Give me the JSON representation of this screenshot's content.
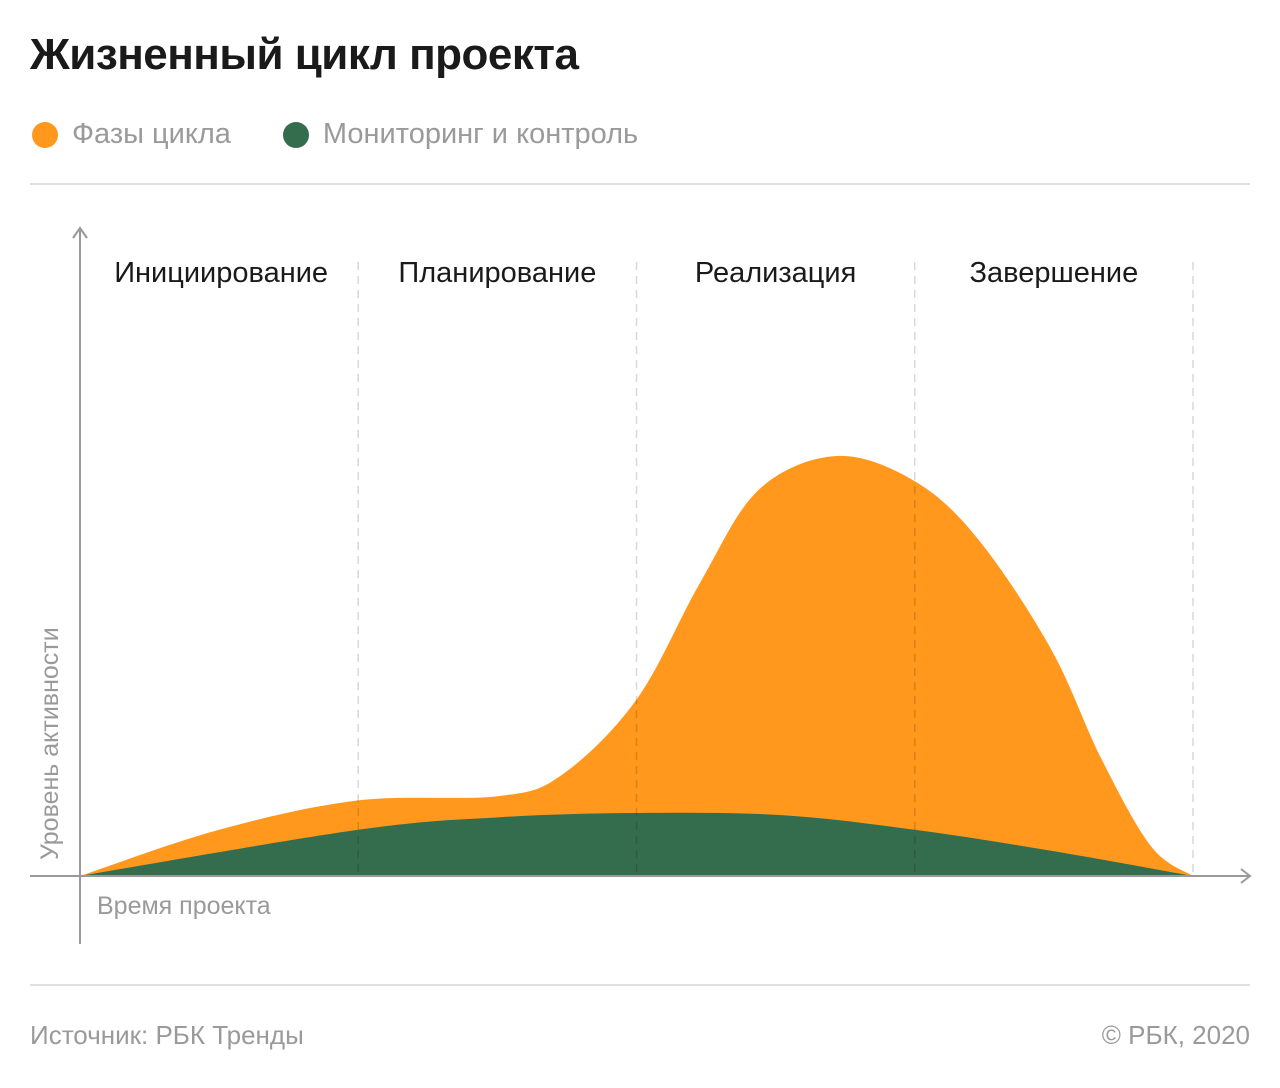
{
  "title": "Жизненный цикл проекта",
  "footer": {
    "source": "Источник: РБК Тренды",
    "copyright": "© РБК, 2020"
  },
  "chart_data": {
    "type": "area",
    "title": "Жизненный цикл проекта",
    "xlabel": "Время проекта",
    "ylabel": "Уровень активности",
    "xlim": [
      0,
      4
    ],
    "ylim": [
      0,
      100
    ],
    "grid": false,
    "legend_position": "top-left",
    "phases": [
      "Инициирование",
      "Планирование",
      "Реализация",
      "Завершение"
    ],
    "phase_boundaries": [
      1,
      2,
      3,
      4
    ],
    "series": [
      {
        "name": "Фазы цикла",
        "color": "#FF981C",
        "x": [
          0,
          0.5,
          1,
          1.5,
          1.73,
          2,
          2.23,
          2.44,
          2.72,
          3,
          3.23,
          3.49,
          3.67,
          3.85,
          4
        ],
        "y": [
          0,
          11,
          18,
          19,
          24,
          42,
          70,
          92,
          100,
          94,
          80,
          54,
          28,
          7,
          0
        ]
      },
      {
        "name": "Мониторинг и контроль",
        "color": "#346C4E",
        "x": [
          0,
          1,
          1.51,
          2,
          2.52,
          3,
          3.49,
          4
        ],
        "y": [
          0,
          11,
          14,
          15,
          14.5,
          11,
          6,
          0
        ]
      }
    ]
  }
}
